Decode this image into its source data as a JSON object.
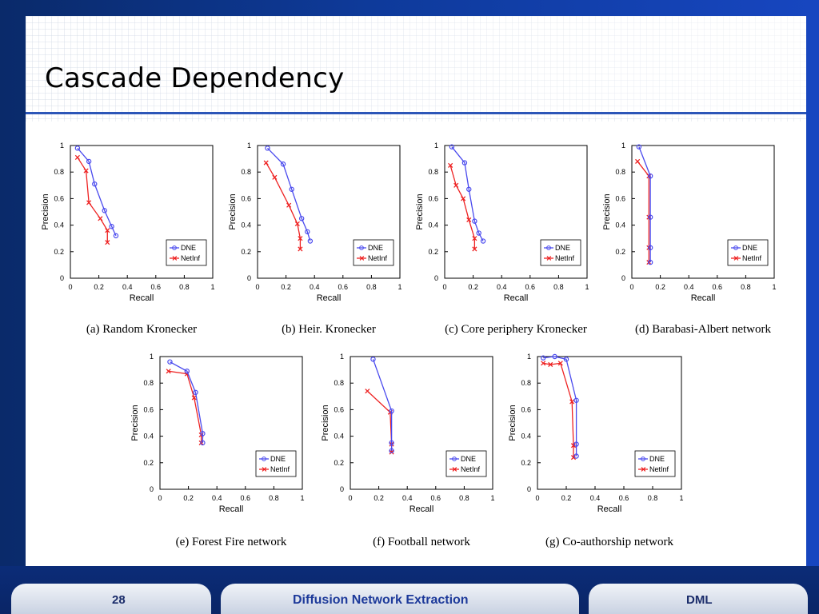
{
  "slide": {
    "title": "Cascade Dependency",
    "page_number": "28",
    "footer_center": "Diffusion Network Extraction",
    "footer_right": "DML"
  },
  "colors": {
    "dne": "#4a4aee",
    "netinf": "#ee2222"
  },
  "chart_data": [
    {
      "type": "line",
      "caption": "(a) Random Kronecker",
      "xlabel": "Recall",
      "ylabel": "Precision",
      "xlim": [
        0,
        1
      ],
      "ylim": [
        0,
        1
      ],
      "xticks": [
        "0",
        "0.2",
        "0.4",
        "0.6",
        "0.8",
        "1"
      ],
      "yticks": [
        "0",
        "0.2",
        "0.4",
        "0.6",
        "0.8",
        "1"
      ],
      "legend": "lower-right",
      "series": [
        {
          "name": "DNE",
          "marker": "o",
          "points": [
            [
              0.05,
              0.98
            ],
            [
              0.13,
              0.88
            ],
            [
              0.17,
              0.71
            ],
            [
              0.24,
              0.51
            ],
            [
              0.29,
              0.39
            ],
            [
              0.32,
              0.32
            ]
          ]
        },
        {
          "name": "NetInf",
          "marker": "x",
          "points": [
            [
              0.05,
              0.91
            ],
            [
              0.11,
              0.81
            ],
            [
              0.13,
              0.57
            ],
            [
              0.21,
              0.45
            ],
            [
              0.26,
              0.36
            ],
            [
              0.26,
              0.27
            ]
          ]
        }
      ]
    },
    {
      "type": "line",
      "caption": "(b) Heir. Kronecker",
      "xlabel": "Recall",
      "ylabel": "Precision",
      "xlim": [
        0,
        1
      ],
      "ylim": [
        0,
        1
      ],
      "xticks": [
        "0",
        "0.2",
        "0.4",
        "0.6",
        "0.8",
        "1"
      ],
      "yticks": [
        "0",
        "0.2",
        "0.4",
        "0.6",
        "0.8",
        "1"
      ],
      "legend": "lower-right",
      "series": [
        {
          "name": "DNE",
          "marker": "o",
          "points": [
            [
              0.07,
              0.98
            ],
            [
              0.18,
              0.86
            ],
            [
              0.24,
              0.67
            ],
            [
              0.31,
              0.45
            ],
            [
              0.35,
              0.35
            ],
            [
              0.37,
              0.28
            ]
          ]
        },
        {
          "name": "NetInf",
          "marker": "x",
          "points": [
            [
              0.06,
              0.87
            ],
            [
              0.12,
              0.76
            ],
            [
              0.22,
              0.55
            ],
            [
              0.28,
              0.41
            ],
            [
              0.3,
              0.3
            ],
            [
              0.3,
              0.22
            ]
          ]
        }
      ]
    },
    {
      "type": "line",
      "caption": "(c) Core periphery Kronecker",
      "xlabel": "Recall",
      "ylabel": "Precision",
      "xlim": [
        0,
        1
      ],
      "ylim": [
        0,
        1
      ],
      "xticks": [
        "0",
        "0.2",
        "0.4",
        "0.6",
        "0.8",
        "1"
      ],
      "yticks": [
        "0",
        "0.2",
        "0.4",
        "0.6",
        "0.8",
        "1"
      ],
      "legend": "lower-right",
      "series": [
        {
          "name": "DNE",
          "marker": "o",
          "points": [
            [
              0.05,
              0.99
            ],
            [
              0.14,
              0.87
            ],
            [
              0.17,
              0.67
            ],
            [
              0.21,
              0.43
            ],
            [
              0.24,
              0.34
            ],
            [
              0.27,
              0.28
            ]
          ]
        },
        {
          "name": "NetInf",
          "marker": "x",
          "points": [
            [
              0.04,
              0.85
            ],
            [
              0.08,
              0.7
            ],
            [
              0.13,
              0.6
            ],
            [
              0.17,
              0.44
            ],
            [
              0.21,
              0.3
            ],
            [
              0.21,
              0.22
            ]
          ]
        }
      ]
    },
    {
      "type": "line",
      "caption": "(d) Barabasi-Albert network",
      "xlabel": "Recall",
      "ylabel": "Precision",
      "xlim": [
        0,
        1
      ],
      "ylim": [
        0,
        1
      ],
      "xticks": [
        "0",
        "0.2",
        "0.4",
        "0.6",
        "0.8",
        "1"
      ],
      "yticks": [
        "0",
        "0.2",
        "0.4",
        "0.6",
        "0.8",
        "1"
      ],
      "legend": "lower-right",
      "series": [
        {
          "name": "DNE",
          "marker": "o",
          "points": [
            [
              0.05,
              0.99
            ],
            [
              0.13,
              0.77
            ],
            [
              0.13,
              0.46
            ],
            [
              0.13,
              0.23
            ],
            [
              0.13,
              0.12
            ]
          ]
        },
        {
          "name": "NetInf",
          "marker": "x",
          "points": [
            [
              0.04,
              0.88
            ],
            [
              0.12,
              0.77
            ],
            [
              0.12,
              0.46
            ],
            [
              0.12,
              0.23
            ],
            [
              0.12,
              0.12
            ]
          ]
        }
      ]
    },
    {
      "type": "line",
      "caption": "(e) Forest Fire network",
      "xlabel": "Recall",
      "ylabel": "Precision",
      "xlim": [
        0,
        1
      ],
      "ylim": [
        0,
        1
      ],
      "xticks": [
        "0",
        "0.2",
        "0.4",
        "0.6",
        "0.8",
        "1"
      ],
      "yticks": [
        "0",
        "0.2",
        "0.4",
        "0.6",
        "0.8",
        "1"
      ],
      "legend": "lower-right",
      "series": [
        {
          "name": "DNE",
          "marker": "o",
          "points": [
            [
              0.07,
              0.96
            ],
            [
              0.19,
              0.89
            ],
            [
              0.25,
              0.73
            ],
            [
              0.3,
              0.42
            ],
            [
              0.3,
              0.35
            ]
          ]
        },
        {
          "name": "NetInf",
          "marker": "x",
          "points": [
            [
              0.06,
              0.89
            ],
            [
              0.19,
              0.87
            ],
            [
              0.24,
              0.69
            ],
            [
              0.29,
              0.41
            ],
            [
              0.29,
              0.35
            ]
          ]
        }
      ]
    },
    {
      "type": "line",
      "caption": "(f) Football network",
      "xlabel": "Recall",
      "ylabel": "Precision",
      "xlim": [
        0,
        1
      ],
      "ylim": [
        0,
        1
      ],
      "xticks": [
        "0",
        "0.2",
        "0.4",
        "0.6",
        "0.8",
        "1"
      ],
      "yticks": [
        "0",
        "0.2",
        "0.4",
        "0.6",
        "0.8",
        "1"
      ],
      "legend": "lower-right",
      "series": [
        {
          "name": "DNE",
          "marker": "o",
          "points": [
            [
              0.16,
              0.98
            ],
            [
              0.29,
              0.59
            ],
            [
              0.29,
              0.35
            ],
            [
              0.29,
              0.29
            ]
          ]
        },
        {
          "name": "NetInf",
          "marker": "x",
          "points": [
            [
              0.12,
              0.74
            ],
            [
              0.28,
              0.58
            ],
            [
              0.29,
              0.34
            ],
            [
              0.29,
              0.28
            ]
          ]
        }
      ]
    },
    {
      "type": "line",
      "caption": "(g) Co-authorship network",
      "xlabel": "Recall",
      "ylabel": "Precision",
      "xlim": [
        0,
        1
      ],
      "ylim": [
        0,
        1
      ],
      "xticks": [
        "0",
        "0.2",
        "0.4",
        "0.6",
        "0.8",
        "1"
      ],
      "yticks": [
        "0",
        "0.2",
        "0.4",
        "0.6",
        "0.8",
        "1"
      ],
      "legend": "lower-right",
      "series": [
        {
          "name": "DNE",
          "marker": "o",
          "points": [
            [
              0.04,
              0.99
            ],
            [
              0.12,
              1.0
            ],
            [
              0.2,
              0.98
            ],
            [
              0.27,
              0.67
            ],
            [
              0.27,
              0.34
            ],
            [
              0.27,
              0.25
            ]
          ]
        },
        {
          "name": "NetInf",
          "marker": "x",
          "points": [
            [
              0.04,
              0.95
            ],
            [
              0.09,
              0.94
            ],
            [
              0.16,
              0.95
            ],
            [
              0.24,
              0.66
            ],
            [
              0.25,
              0.33
            ],
            [
              0.25,
              0.24
            ]
          ]
        }
      ]
    }
  ]
}
